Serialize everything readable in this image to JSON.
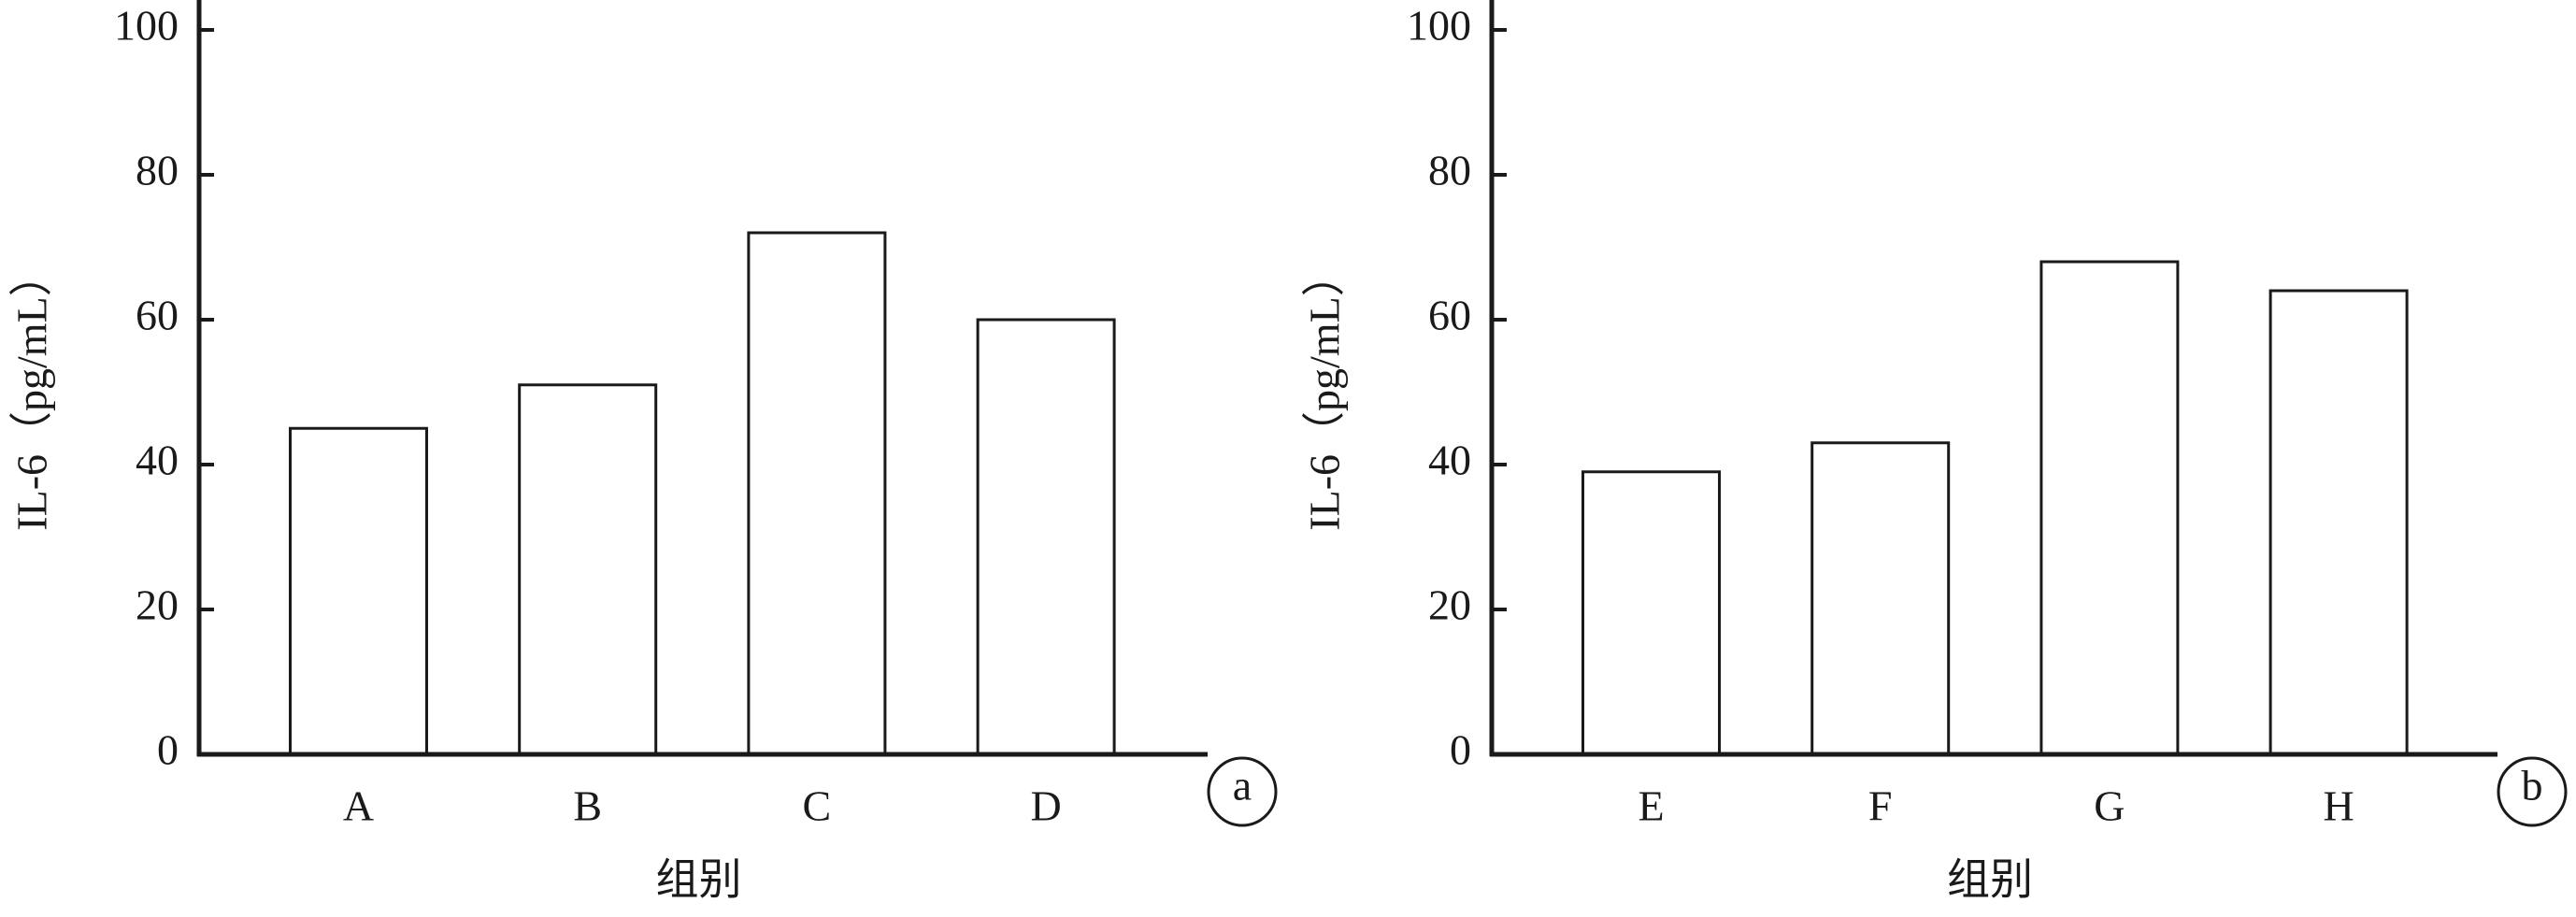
{
  "chart_data": [
    {
      "type": "bar",
      "categories": [
        "A",
        "B",
        "C",
        "D"
      ],
      "values": [
        45,
        51,
        72,
        60
      ],
      "color": "#ffffff",
      "ylim": [
        0,
        100
      ],
      "yticks": [
        0,
        20,
        40,
        60,
        80,
        100
      ],
      "y_label": "IL-6（pg/mL）",
      "x_label": "组别",
      "panel_label": "a"
    },
    {
      "type": "bar",
      "categories": [
        "E",
        "F",
        "G",
        "H"
      ],
      "values": [
        39,
        43,
        68,
        64
      ],
      "color": "#ffffff",
      "ylim": [
        0,
        100
      ],
      "yticks": [
        0,
        20,
        40,
        60,
        80,
        100
      ],
      "y_label": "IL-6（pg/mL）",
      "x_label": "组别",
      "panel_label": "b"
    }
  ]
}
